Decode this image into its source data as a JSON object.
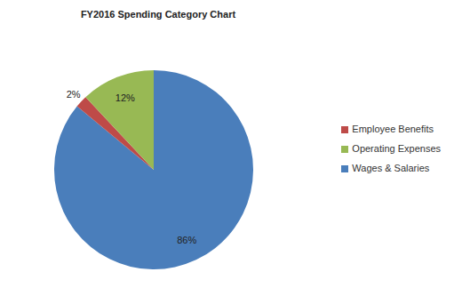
{
  "chart_data": {
    "type": "pie",
    "title": "FY2016 Spending Category Chart",
    "categories": [
      "Wages & Salaries",
      "Employee Benefits",
      "Operating Expenses"
    ],
    "values": [
      86,
      2,
      12
    ],
    "value_labels": [
      "86%",
      "2%",
      "12%"
    ],
    "colors": [
      "#4a7ebb",
      "#be4b48",
      "#98b954"
    ],
    "data_labels": true,
    "legend": "right"
  }
}
